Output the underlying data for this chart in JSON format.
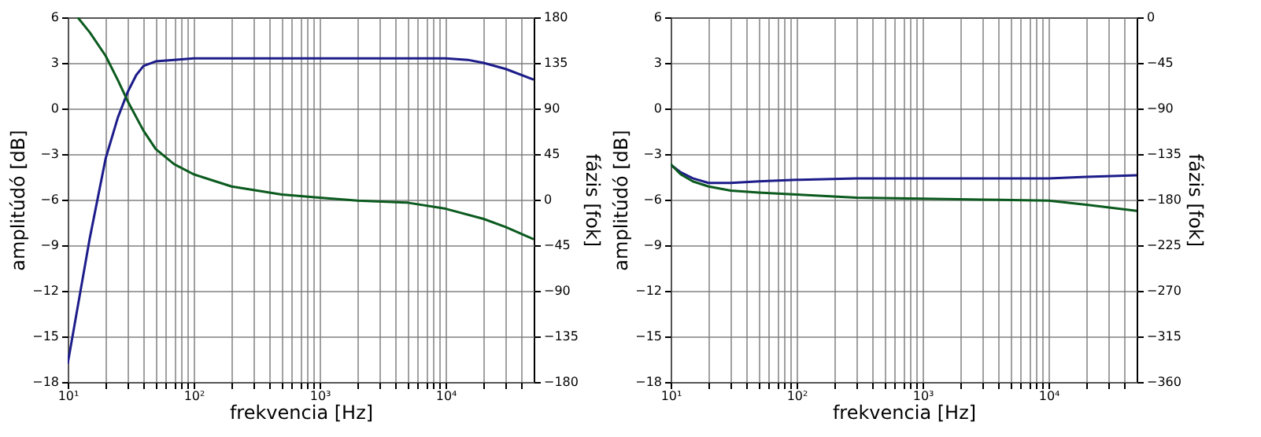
{
  "chart_data": [
    {
      "type": "line",
      "xlabel": "frekvencia [Hz]",
      "ylabel": "amplitúdó [dB]",
      "y2label": "fázis [fok]",
      "log": "x",
      "grid": true,
      "xlim": [
        10,
        50000
      ],
      "xticks": [
        {
          "value": 10,
          "label": "10¹"
        },
        {
          "value": 20,
          "label": null
        },
        {
          "value": 30,
          "label": null
        },
        {
          "value": 40,
          "label": null
        },
        {
          "value": 50,
          "label": null
        },
        {
          "value": 60,
          "label": null
        },
        {
          "value": 70,
          "label": null
        },
        {
          "value": 80,
          "label": null
        },
        {
          "value": 90,
          "label": null
        },
        {
          "value": 100,
          "label": "10²"
        },
        {
          "value": 200,
          "label": null
        },
        {
          "value": 300,
          "label": null
        },
        {
          "value": 400,
          "label": null
        },
        {
          "value": 500,
          "label": null
        },
        {
          "value": 600,
          "label": null
        },
        {
          "value": 700,
          "label": null
        },
        {
          "value": 800,
          "label": null
        },
        {
          "value": 900,
          "label": null
        },
        {
          "value": 1000,
          "label": "10³"
        },
        {
          "value": 2000,
          "label": null
        },
        {
          "value": 3000,
          "label": null
        },
        {
          "value": 4000,
          "label": null
        },
        {
          "value": 5000,
          "label": null
        },
        {
          "value": 6000,
          "label": null
        },
        {
          "value": 7000,
          "label": null
        },
        {
          "value": 8000,
          "label": null
        },
        {
          "value": 9000,
          "label": null
        },
        {
          "value": 10000,
          "label": "10⁴"
        },
        {
          "value": 20000,
          "label": null
        },
        {
          "value": 30000,
          "label": null
        },
        {
          "value": 40000,
          "label": null
        }
      ],
      "ylim": [
        -18,
        6
      ],
      "yticks": [
        -18,
        -15,
        -12,
        -9,
        -6,
        -3,
        0,
        3,
        6
      ],
      "y2lim": [
        -180,
        180
      ],
      "y2ticks": [
        -180,
        -135,
        -90,
        -45,
        0,
        45,
        90,
        135,
        180
      ],
      "series": [
        {
          "color": "#1c1c8a",
          "x": [
            10,
            15,
            20,
            25,
            30,
            35,
            40,
            50,
            70,
            100,
            200,
            1000,
            5000,
            10000,
            15000,
            20000,
            30000,
            50000
          ],
          "values": [
            -16.8,
            -8.5,
            -3.3,
            -0.6,
            1.1,
            2.2,
            2.8,
            3.1,
            3.2,
            3.3,
            3.3,
            3.3,
            3.3,
            3.3,
            3.2,
            3.0,
            2.6,
            1.9
          ]
        },
        {
          "color": "#0b5a1e",
          "axis": "y2",
          "x": [
            12,
            15,
            20,
            25,
            30,
            40,
            50,
            70,
            100,
            200,
            500,
            1000,
            2000,
            5000,
            10000,
            20000,
            30000,
            50000
          ],
          "values": [
            180,
            165,
            142,
            118,
            97,
            68,
            50,
            35,
            25,
            13,
            5,
            2,
            -1,
            -3,
            -9,
            -19,
            -27,
            -39
          ]
        }
      ]
    },
    {
      "type": "line",
      "xlabel": "frekvencia [Hz]",
      "ylabel": "amplitúdó [dB]",
      "y2label": "fázis [fok]",
      "log": "x",
      "grid": true,
      "xlim": [
        10,
        50000
      ],
      "xticks": [
        {
          "value": 10,
          "label": "10¹"
        },
        {
          "value": 20,
          "label": null
        },
        {
          "value": 30,
          "label": null
        },
        {
          "value": 40,
          "label": null
        },
        {
          "value": 50,
          "label": null
        },
        {
          "value": 60,
          "label": null
        },
        {
          "value": 70,
          "label": null
        },
        {
          "value": 80,
          "label": null
        },
        {
          "value": 90,
          "label": null
        },
        {
          "value": 100,
          "label": "10²"
        },
        {
          "value": 200,
          "label": null
        },
        {
          "value": 300,
          "label": null
        },
        {
          "value": 400,
          "label": null
        },
        {
          "value": 500,
          "label": null
        },
        {
          "value": 600,
          "label": null
        },
        {
          "value": 700,
          "label": null
        },
        {
          "value": 800,
          "label": null
        },
        {
          "value": 900,
          "label": null
        },
        {
          "value": 1000,
          "label": "10³"
        },
        {
          "value": 2000,
          "label": null
        },
        {
          "value": 3000,
          "label": null
        },
        {
          "value": 4000,
          "label": null
        },
        {
          "value": 5000,
          "label": null
        },
        {
          "value": 6000,
          "label": null
        },
        {
          "value": 7000,
          "label": null
        },
        {
          "value": 8000,
          "label": null
        },
        {
          "value": 9000,
          "label": null
        },
        {
          "value": 10000,
          "label": "10⁴"
        },
        {
          "value": 20000,
          "label": null
        },
        {
          "value": 30000,
          "label": null
        },
        {
          "value": 40000,
          "label": null
        }
      ],
      "ylim": [
        -18,
        6
      ],
      "yticks": [
        -18,
        -15,
        -12,
        -9,
        -6,
        -3,
        0,
        3,
        6
      ],
      "y2lim": [
        -360,
        0
      ],
      "y2ticks": [
        -360,
        -315,
        -270,
        -225,
        -180,
        -135,
        -90,
        -45,
        0
      ],
      "x": [
        10,
        12,
        15,
        20,
        30,
        50,
        100,
        300,
        1000,
        3000,
        10000,
        20000,
        50000
      ],
      "series": [
        {
          "color": "#1c1c8a",
          "values": [
            -3.7,
            -4.2,
            -4.6,
            -4.9,
            -4.9,
            -4.8,
            -4.7,
            -4.6,
            -4.6,
            -4.6,
            -4.6,
            -4.5,
            -4.4
          ]
        },
        {
          "color": "#0b5a1e",
          "axis": "y2",
          "values": [
            -145,
            -155,
            -162,
            -167,
            -171,
            -173,
            -175,
            -178,
            -179,
            -180,
            -181,
            -185,
            -191
          ]
        }
      ]
    }
  ]
}
